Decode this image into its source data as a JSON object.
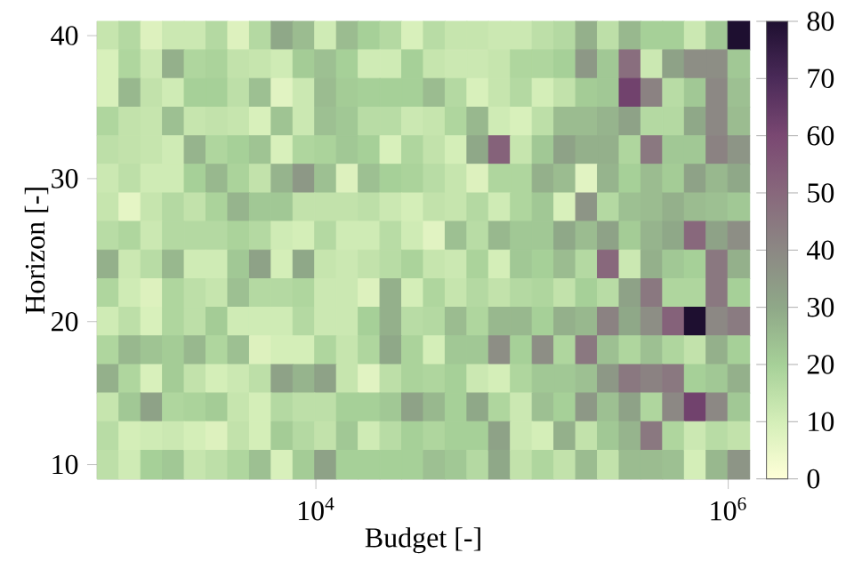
{
  "chart_data": {
    "type": "heatmap",
    "xlabel": "Budget [-]",
    "ylabel": "Horizon [-]",
    "x": [
      982,
      1252,
      1597,
      2035,
      2595,
      3308,
      4219,
      5378,
      6855,
      8739,
      11140,
      14210,
      18110,
      23090,
      29440,
      37530,
      47850,
      61000,
      77770,
      99150,
      126400,
      161200,
      205500,
      262000,
      334000,
      425800,
      542800,
      692100,
      882300,
      1125000
    ],
    "y": [
      40,
      38,
      36,
      34,
      32,
      30,
      28,
      26,
      24,
      22,
      20,
      18,
      16,
      14,
      12,
      10
    ],
    "cells": [
      [
        13,
        17,
        8,
        12,
        12,
        17,
        8,
        17,
        30,
        25,
        11,
        25,
        20,
        17,
        9,
        16,
        13,
        13,
        12,
        12,
        15,
        17,
        28,
        15,
        26,
        20,
        20,
        12,
        22,
        80
      ],
      [
        9,
        18,
        12,
        28,
        18,
        19,
        14,
        13,
        11,
        21,
        24,
        20,
        11,
        11,
        20,
        13,
        12,
        12,
        13,
        18,
        18,
        20,
        35,
        22,
        48,
        12,
        32,
        38,
        38,
        22
      ],
      [
        9,
        26,
        14,
        11,
        20,
        20,
        15,
        24,
        7,
        12,
        25,
        21,
        20,
        20,
        20,
        25,
        17,
        9,
        13,
        17,
        10,
        14,
        21,
        22,
        62,
        42,
        16,
        22,
        40,
        24
      ],
      [
        18,
        14,
        13,
        24,
        13,
        14,
        13,
        9,
        23,
        12,
        24,
        22,
        16,
        16,
        12,
        13,
        18,
        26,
        11,
        9,
        15,
        25,
        25,
        27,
        32,
        17,
        17,
        30,
        40,
        25
      ],
      [
        15,
        14,
        13,
        11,
        27,
        18,
        20,
        23,
        9,
        18,
        19,
        22,
        20,
        9,
        18,
        14,
        10,
        30,
        52,
        13,
        22,
        32,
        28,
        28,
        18,
        45,
        22,
        22,
        42,
        36
      ],
      [
        12,
        15,
        11,
        11,
        20,
        26,
        19,
        14,
        27,
        35,
        24,
        8,
        24,
        20,
        19,
        16,
        13,
        8,
        18,
        18,
        28,
        25,
        7,
        27,
        20,
        25,
        21,
        32,
        26,
        30
      ],
      [
        13,
        6,
        13,
        17,
        14,
        19,
        27,
        22,
        22,
        14,
        14,
        14,
        15,
        12,
        10,
        14,
        13,
        17,
        11,
        18,
        22,
        9,
        36,
        17,
        24,
        25,
        28,
        25,
        24,
        22
      ],
      [
        16,
        18,
        12,
        17,
        17,
        17,
        19,
        17,
        11,
        10,
        17,
        11,
        11,
        16,
        11,
        7,
        24,
        16,
        26,
        22,
        22,
        30,
        25,
        32,
        21,
        27,
        30,
        50,
        32,
        38
      ],
      [
        28,
        12,
        16,
        26,
        11,
        11,
        22,
        32,
        10,
        30,
        13,
        12,
        14,
        16,
        19,
        13,
        12,
        19,
        10,
        22,
        20,
        25,
        17,
        50,
        12,
        28,
        22,
        20,
        45,
        28
      ],
      [
        18,
        11,
        8,
        18,
        15,
        13,
        24,
        17,
        17,
        18,
        12,
        12,
        8,
        28,
        10,
        18,
        13,
        17,
        14,
        17,
        18,
        14,
        20,
        16,
        32,
        45,
        18,
        18,
        45,
        20
      ],
      [
        11,
        15,
        9,
        18,
        15,
        21,
        11,
        11,
        11,
        17,
        12,
        12,
        20,
        28,
        16,
        17,
        25,
        18,
        26,
        26,
        20,
        28,
        26,
        42,
        30,
        38,
        52,
        80,
        40,
        44
      ],
      [
        18,
        26,
        23,
        21,
        26,
        18,
        24,
        8,
        10,
        10,
        18,
        13,
        18,
        30,
        19,
        10,
        22,
        22,
        38,
        20,
        38,
        18,
        45,
        24,
        18,
        24,
        18,
        14,
        28,
        20
      ],
      [
        28,
        18,
        9,
        21,
        14,
        10,
        12,
        15,
        32,
        27,
        32,
        13,
        7,
        15,
        19,
        18,
        20,
        12,
        10,
        18,
        22,
        22,
        24,
        35,
        45,
        42,
        45,
        20,
        22,
        28
      ],
      [
        13,
        22,
        32,
        18,
        19,
        21,
        13,
        10,
        17,
        15,
        15,
        20,
        20,
        22,
        32,
        26,
        20,
        30,
        18,
        12,
        24,
        20,
        35,
        24,
        32,
        18,
        40,
        62,
        40,
        22
      ],
      [
        16,
        10,
        11,
        12,
        10,
        8,
        14,
        10,
        21,
        17,
        14,
        22,
        11,
        16,
        20,
        18,
        20,
        20,
        32,
        12,
        10,
        28,
        14,
        22,
        27,
        45,
        18,
        12,
        16,
        14
      ],
      [
        15,
        11,
        20,
        22,
        13,
        15,
        18,
        24,
        9,
        21,
        32,
        20,
        20,
        20,
        20,
        24,
        22,
        17,
        30,
        14,
        18,
        14,
        25,
        14,
        25,
        25,
        24,
        10,
        26,
        36
      ]
    ],
    "log": "x",
    "xlim": [
      870,
      1270000
    ],
    "xticks": [
      {
        "value": 10000,
        "label": "10$^{4}$"
      },
      {
        "value": 1000000,
        "label": "10$^{6}$"
      }
    ],
    "ylim": [
      9,
      41
    ],
    "yticks": [
      10,
      20,
      30,
      40
    ],
    "clim": [
      0,
      80
    ],
    "cticks": [
      0,
      10,
      20,
      30,
      40,
      50,
      60,
      70,
      80
    ]
  }
}
